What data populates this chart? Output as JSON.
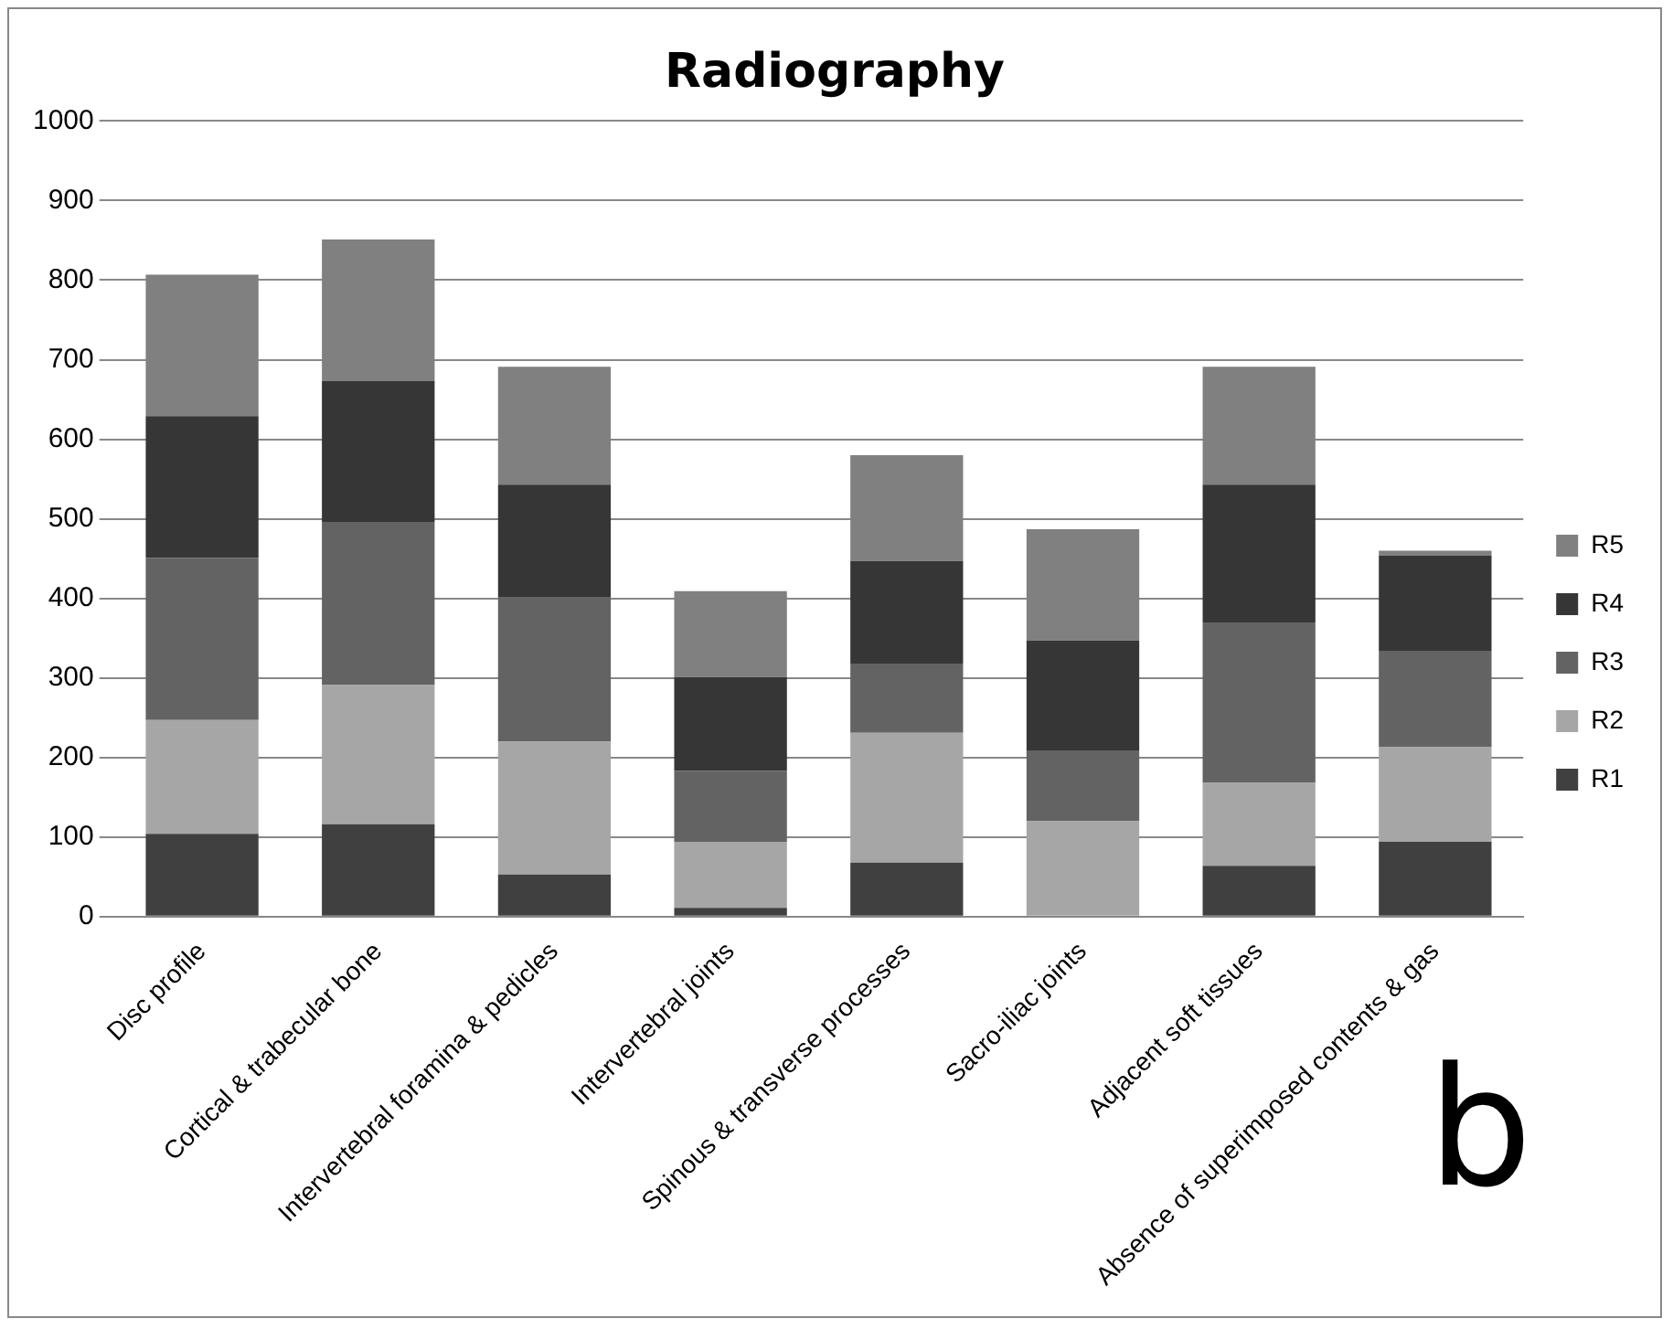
{
  "chart_data": {
    "type": "bar",
    "title": "Radiography",
    "stacked": true,
    "categories": [
      "Disc profile",
      "Cortical & trabecular bone",
      "Intervertebral foramina & pedicles",
      "Intervertebral joints",
      "Spinous & transverse processes",
      "Sacro-iliac joints",
      "Adjacent soft tissues",
      "Absence of superimposed contents & gas"
    ],
    "series": [
      {
        "name": "R1",
        "color": "#404040",
        "values": [
          104,
          116,
          53,
          11,
          68,
          0,
          64,
          94
        ]
      },
      {
        "name": "R2",
        "color": "#a6a6a6",
        "values": [
          143,
          175,
          167,
          83,
          163,
          120,
          104,
          119
        ]
      },
      {
        "name": "R3",
        "color": "#636363",
        "values": [
          204,
          205,
          182,
          89,
          87,
          89,
          201,
          121
        ]
      },
      {
        "name": "R4",
        "color": "#363636",
        "values": [
          178,
          177,
          141,
          118,
          129,
          138,
          174,
          120
        ]
      },
      {
        "name": "R5",
        "color": "#808080",
        "values": [
          178,
          178,
          148,
          108,
          133,
          140,
          148,
          6
        ]
      }
    ],
    "ylim": [
      0,
      1000
    ],
    "yticks": [
      0,
      100,
      200,
      300,
      400,
      500,
      600,
      700,
      800,
      900,
      1000
    ],
    "grid": "y",
    "legend": "right",
    "annotations": [
      "b"
    ]
  }
}
